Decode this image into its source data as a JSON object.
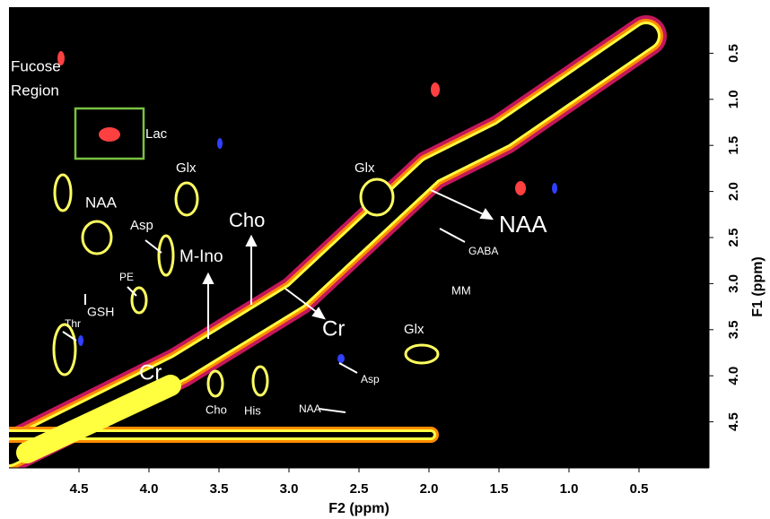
{
  "chart_data": {
    "type": "spectrum",
    "xlabel": "F2 (ppm)",
    "ylabel": "F1 (ppm)",
    "xlim": [
      5.0,
      0.0
    ],
    "ylim": [
      0.0,
      5.0
    ],
    "xticks": [
      4.5,
      {
        "value": 4,
        "label": "4.0"
      },
      3.5,
      {
        "value": 3,
        "label": "3.0"
      },
      2.5,
      {
        "value": 2,
        "label": "2.0"
      },
      1.5,
      {
        "value": 1,
        "label": "1.0"
      },
      0.5
    ],
    "yticks": [
      0.5,
      {
        "value": 1,
        "label": "1.0"
      },
      1.5,
      {
        "value": 2,
        "label": "2.0"
      },
      2.5,
      {
        "value": 3,
        "label": "3.0"
      },
      3.5,
      {
        "value": 4,
        "label": "4.0"
      },
      4.5
    ],
    "annotations": [
      "Fucose",
      "Region",
      "Lac",
      "NAA",
      "Glx",
      "Asp",
      "M-Ino",
      "Cho",
      "PE",
      "GSH",
      "Thr",
      "Cr",
      "Cho",
      "His",
      "NAA",
      "Asp",
      "Glx",
      "Glx",
      "NAA",
      "GABA",
      "MM",
      "Cr"
    ]
  }
}
